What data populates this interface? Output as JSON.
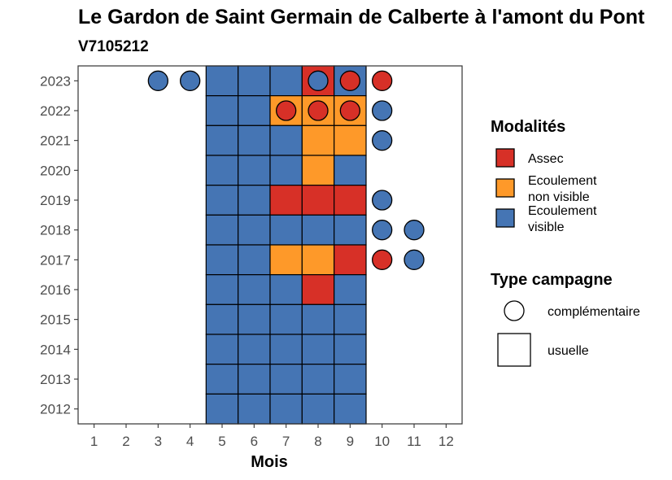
{
  "chart_data": {
    "type": "heatmap",
    "title": "Le Gardon de Saint Germain de Calberte à l'amont du Pont",
    "subtitle": "V7105212",
    "xlabel": "Mois",
    "ylabel": "",
    "x_ticks": [
      1,
      2,
      3,
      4,
      5,
      6,
      7,
      8,
      9,
      10,
      11,
      12
    ],
    "y_ticks": [
      2012,
      2013,
      2014,
      2015,
      2016,
      2017,
      2018,
      2019,
      2020,
      2021,
      2022,
      2023
    ],
    "xlim": [
      0.5,
      12.5
    ],
    "ylim": [
      2011.5,
      2023.5
    ],
    "grid": false,
    "legend_position": "right",
    "colors": {
      "Assec": "#d73027",
      "Ecoulement non visible": "#fe9929",
      "Ecoulement visible": "#4575b4"
    },
    "legends": {
      "modalites": {
        "title": "Modalités",
        "items": [
          {
            "key": "Assec",
            "label_lines": [
              "Assec"
            ]
          },
          {
            "key": "Ecoulement non visible",
            "label_lines": [
              "Ecoulement",
              "non visible"
            ]
          },
          {
            "key": "Ecoulement visible",
            "label_lines": [
              "Ecoulement",
              "visible"
            ]
          }
        ]
      },
      "type_campagne": {
        "title": "Type campagne",
        "items": [
          {
            "shape": "circle",
            "label": "complémentaire"
          },
          {
            "shape": "square",
            "label": "usuelle"
          }
        ]
      }
    },
    "usuelle": [
      {
        "year": 2023,
        "month": 5,
        "value": "Ecoulement visible"
      },
      {
        "year": 2023,
        "month": 6,
        "value": "Ecoulement visible"
      },
      {
        "year": 2023,
        "month": 7,
        "value": "Ecoulement visible"
      },
      {
        "year": 2023,
        "month": 8,
        "value": "Assec"
      },
      {
        "year": 2023,
        "month": 9,
        "value": "Ecoulement visible"
      },
      {
        "year": 2022,
        "month": 5,
        "value": "Ecoulement visible"
      },
      {
        "year": 2022,
        "month": 6,
        "value": "Ecoulement visible"
      },
      {
        "year": 2022,
        "month": 7,
        "value": "Ecoulement non visible"
      },
      {
        "year": 2022,
        "month": 8,
        "value": "Ecoulement non visible"
      },
      {
        "year": 2022,
        "month": 9,
        "value": "Ecoulement non visible"
      },
      {
        "year": 2021,
        "month": 5,
        "value": "Ecoulement visible"
      },
      {
        "year": 2021,
        "month": 6,
        "value": "Ecoulement visible"
      },
      {
        "year": 2021,
        "month": 7,
        "value": "Ecoulement visible"
      },
      {
        "year": 2021,
        "month": 8,
        "value": "Ecoulement non visible"
      },
      {
        "year": 2021,
        "month": 9,
        "value": "Ecoulement non visible"
      },
      {
        "year": 2020,
        "month": 5,
        "value": "Ecoulement visible"
      },
      {
        "year": 2020,
        "month": 6,
        "value": "Ecoulement visible"
      },
      {
        "year": 2020,
        "month": 7,
        "value": "Ecoulement visible"
      },
      {
        "year": 2020,
        "month": 8,
        "value": "Ecoulement non visible"
      },
      {
        "year": 2020,
        "month": 9,
        "value": "Ecoulement visible"
      },
      {
        "year": 2019,
        "month": 5,
        "value": "Ecoulement visible"
      },
      {
        "year": 2019,
        "month": 6,
        "value": "Ecoulement visible"
      },
      {
        "year": 2019,
        "month": 7,
        "value": "Assec"
      },
      {
        "year": 2019,
        "month": 8,
        "value": "Assec"
      },
      {
        "year": 2019,
        "month": 9,
        "value": "Assec"
      },
      {
        "year": 2018,
        "month": 5,
        "value": "Ecoulement visible"
      },
      {
        "year": 2018,
        "month": 6,
        "value": "Ecoulement visible"
      },
      {
        "year": 2018,
        "month": 7,
        "value": "Ecoulement visible"
      },
      {
        "year": 2018,
        "month": 8,
        "value": "Ecoulement visible"
      },
      {
        "year": 2018,
        "month": 9,
        "value": "Ecoulement visible"
      },
      {
        "year": 2017,
        "month": 5,
        "value": "Ecoulement visible"
      },
      {
        "year": 2017,
        "month": 6,
        "value": "Ecoulement visible"
      },
      {
        "year": 2017,
        "month": 7,
        "value": "Ecoulement non visible"
      },
      {
        "year": 2017,
        "month": 8,
        "value": "Ecoulement non visible"
      },
      {
        "year": 2017,
        "month": 9,
        "value": "Assec"
      },
      {
        "year": 2016,
        "month": 5,
        "value": "Ecoulement visible"
      },
      {
        "year": 2016,
        "month": 6,
        "value": "Ecoulement visible"
      },
      {
        "year": 2016,
        "month": 7,
        "value": "Ecoulement visible"
      },
      {
        "year": 2016,
        "month": 8,
        "value": "Assec"
      },
      {
        "year": 2016,
        "month": 9,
        "value": "Ecoulement visible"
      },
      {
        "year": 2015,
        "month": 5,
        "value": "Ecoulement visible"
      },
      {
        "year": 2015,
        "month": 6,
        "value": "Ecoulement visible"
      },
      {
        "year": 2015,
        "month": 7,
        "value": "Ecoulement visible"
      },
      {
        "year": 2015,
        "month": 8,
        "value": "Ecoulement visible"
      },
      {
        "year": 2015,
        "month": 9,
        "value": "Ecoulement visible"
      },
      {
        "year": 2014,
        "month": 5,
        "value": "Ecoulement visible"
      },
      {
        "year": 2014,
        "month": 6,
        "value": "Ecoulement visible"
      },
      {
        "year": 2014,
        "month": 7,
        "value": "Ecoulement visible"
      },
      {
        "year": 2014,
        "month": 8,
        "value": "Ecoulement visible"
      },
      {
        "year": 2014,
        "month": 9,
        "value": "Ecoulement visible"
      },
      {
        "year": 2013,
        "month": 5,
        "value": "Ecoulement visible"
      },
      {
        "year": 2013,
        "month": 6,
        "value": "Ecoulement visible"
      },
      {
        "year": 2013,
        "month": 7,
        "value": "Ecoulement visible"
      },
      {
        "year": 2013,
        "month": 8,
        "value": "Ecoulement visible"
      },
      {
        "year": 2013,
        "month": 9,
        "value": "Ecoulement visible"
      },
      {
        "year": 2012,
        "month": 5,
        "value": "Ecoulement visible"
      },
      {
        "year": 2012,
        "month": 6,
        "value": "Ecoulement visible"
      },
      {
        "year": 2012,
        "month": 7,
        "value": "Ecoulement visible"
      },
      {
        "year": 2012,
        "month": 8,
        "value": "Ecoulement visible"
      },
      {
        "year": 2012,
        "month": 9,
        "value": "Ecoulement visible"
      }
    ],
    "complementaire": [
      {
        "year": 2023,
        "month": 3,
        "value": "Ecoulement visible"
      },
      {
        "year": 2023,
        "month": 4,
        "value": "Ecoulement visible"
      },
      {
        "year": 2023,
        "month": 8,
        "value": "Ecoulement visible"
      },
      {
        "year": 2023,
        "month": 9,
        "value": "Assec"
      },
      {
        "year": 2023,
        "month": 10,
        "value": "Assec"
      },
      {
        "year": 2022,
        "month": 7,
        "value": "Assec"
      },
      {
        "year": 2022,
        "month": 8,
        "value": "Assec"
      },
      {
        "year": 2022,
        "month": 9,
        "value": "Assec"
      },
      {
        "year": 2022,
        "month": 10,
        "value": "Ecoulement visible"
      },
      {
        "year": 2021,
        "month": 10,
        "value": "Ecoulement visible"
      },
      {
        "year": 2019,
        "month": 10,
        "value": "Ecoulement visible"
      },
      {
        "year": 2018,
        "month": 10,
        "value": "Ecoulement visible"
      },
      {
        "year": 2018,
        "month": 11,
        "value": "Ecoulement visible"
      },
      {
        "year": 2017,
        "month": 10,
        "value": "Assec"
      },
      {
        "year": 2017,
        "month": 11,
        "value": "Ecoulement visible"
      }
    ]
  }
}
